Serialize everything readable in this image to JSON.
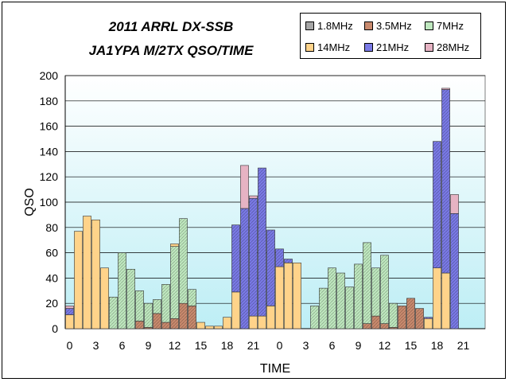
{
  "chart_data": {
    "type": "bar",
    "stacked": true,
    "title": "2011 ARRL DX-SSB",
    "subtitle": "JA1YPA M/2TX  QSO/TIME",
    "xlabel": "TIME",
    "ylabel": "QSO",
    "ylim": [
      0,
      200
    ],
    "yticks": [
      0,
      20,
      40,
      60,
      80,
      100,
      120,
      140,
      160,
      180,
      200
    ],
    "xtick_labels": [
      "0",
      "3",
      "6",
      "9",
      "12",
      "15",
      "18",
      "21",
      "0",
      "3",
      "6",
      "9",
      "12",
      "15",
      "18",
      "21"
    ],
    "xtick_hours": [
      0,
      3,
      6,
      9,
      12,
      15,
      18,
      21,
      24,
      27,
      30,
      33,
      36,
      39,
      42,
      45
    ],
    "hours": [
      0,
      1,
      2,
      3,
      4,
      5,
      6,
      7,
      8,
      9,
      10,
      11,
      12,
      13,
      14,
      15,
      16,
      17,
      18,
      19,
      20,
      21,
      22,
      23,
      24,
      25,
      26,
      27,
      28,
      29,
      30,
      31,
      32,
      33,
      34,
      35,
      36,
      37,
      38,
      39,
      40,
      41,
      42,
      43,
      44,
      45,
      46,
      47
    ],
    "series": [
      {
        "name": "1.8MHz",
        "color": "#a6a6a6",
        "values": [
          0,
          0,
          0,
          0,
          0,
          0,
          0,
          0,
          0,
          0,
          0,
          0,
          0,
          0,
          0,
          0,
          0,
          0,
          0,
          0,
          0,
          0,
          0,
          0,
          0,
          0,
          0,
          0,
          0,
          0,
          0,
          0,
          0,
          0,
          0,
          0,
          0,
          0,
          0,
          0,
          0,
          0,
          0,
          0,
          0,
          0,
          0,
          0
        ]
      },
      {
        "name": "3.5MHz",
        "color": "#c98a6e",
        "values": [
          0,
          0,
          0,
          0,
          0,
          0,
          0,
          0,
          6,
          1,
          12,
          5,
          8,
          20,
          18,
          0,
          0,
          0,
          0,
          0,
          0,
          0,
          0,
          0,
          0,
          0,
          0,
          0,
          0,
          0,
          0,
          0,
          0,
          0,
          4,
          10,
          4,
          1,
          18,
          24,
          16,
          0,
          0,
          0,
          0,
          0,
          0,
          0
        ]
      },
      {
        "name": "7MHz",
        "color": "#bfe8bf",
        "values": [
          0,
          0,
          0,
          0,
          0,
          25,
          60,
          47,
          24,
          19,
          11,
          30,
          57,
          67,
          13,
          0,
          0,
          0,
          0,
          0,
          0,
          0,
          0,
          0,
          0,
          0,
          0,
          0,
          18,
          32,
          48,
          44,
          33,
          51,
          64,
          38,
          54,
          19,
          0,
          0,
          0,
          0,
          0,
          0,
          0,
          0,
          0,
          0
        ]
      },
      {
        "name": "14MHz",
        "color": "#ffd38a",
        "values": [
          11,
          77,
          89,
          86,
          48,
          0,
          0,
          0,
          0,
          0,
          0,
          0,
          2,
          0,
          0,
          5,
          2,
          2,
          9,
          29,
          0,
          10,
          10,
          18,
          49,
          52,
          52,
          0,
          0,
          0,
          0,
          0,
          0,
          0,
          0,
          0,
          0,
          0,
          0,
          0,
          0,
          8,
          48,
          44,
          0,
          0,
          0,
          0
        ]
      },
      {
        "name": "21MHz",
        "color": "#7a7ae6",
        "values": [
          5,
          0,
          0,
          0,
          0,
          0,
          0,
          0,
          0,
          0,
          0,
          0,
          0,
          0,
          0,
          0,
          0,
          0,
          0,
          53,
          95,
          93,
          117,
          60,
          14,
          3,
          0,
          0,
          0,
          0,
          0,
          0,
          0,
          0,
          0,
          0,
          0,
          0,
          0,
          0,
          0,
          1,
          100,
          145,
          91,
          0,
          0,
          0
        ]
      },
      {
        "name": "28MHz",
        "color": "#e6b3c3",
        "values": [
          2,
          0,
          0,
          0,
          0,
          0,
          0,
          0,
          0,
          0,
          0,
          0,
          0,
          0,
          0,
          0,
          0,
          0,
          0,
          0,
          34,
          2,
          0,
          0,
          0,
          0,
          0,
          0,
          0,
          0,
          0,
          0,
          0,
          0,
          0,
          0,
          0,
          0,
          0,
          0,
          0,
          0,
          0,
          1,
          15,
          0,
          0,
          0
        ]
      }
    ],
    "legend_position": "top-right",
    "grid": true
  }
}
